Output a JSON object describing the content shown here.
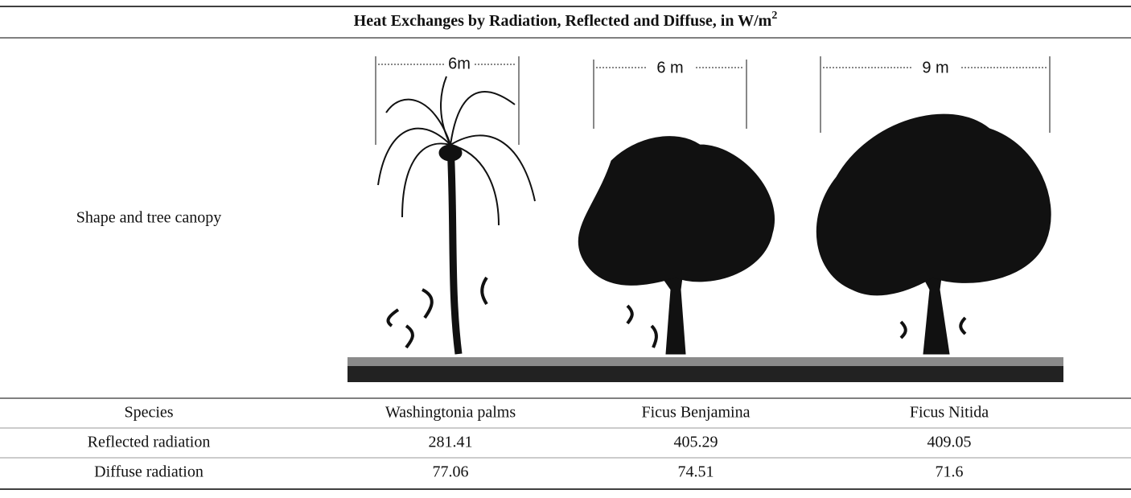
{
  "title": {
    "text": "Heat Exchanges by Radiation, Reflected and Diffuse, in W/m",
    "superscript": "2"
  },
  "figure": {
    "row_label": "Shape and tree canopy",
    "widths": [
      "6m",
      "6 m",
      "9 m"
    ]
  },
  "table": {
    "header": [
      "Species",
      "Washingtonia palms",
      "Ficus Benjamina",
      "Ficus Nitida"
    ],
    "rows": [
      [
        "Reflected radiation",
        281.41,
        405.29,
        409.05
      ],
      [
        "Diffuse radiation",
        77.06,
        74.51,
        71.6
      ]
    ]
  }
}
